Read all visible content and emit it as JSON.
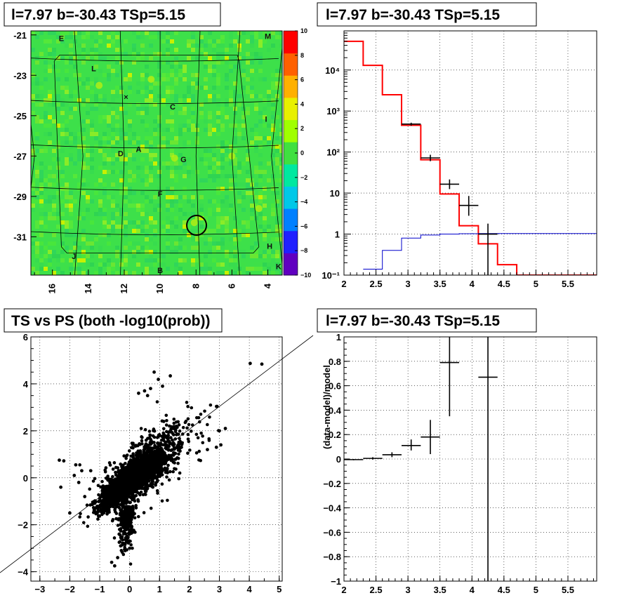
{
  "chart_data": [
    {
      "id": "sky-map",
      "type": "heatmap",
      "title": "l=7.97 b=-30.43 TSp=5.15",
      "x_ticks": [
        16,
        14,
        12,
        10,
        8,
        6,
        4
      ],
      "y_ticks": [
        -21,
        -23,
        -25,
        -27,
        -29,
        -31
      ],
      "xlim": [
        17.2,
        3.2
      ],
      "ylim": [
        -32.9,
        -20.8
      ],
      "colorbar_ticks": [
        10,
        8,
        6,
        4,
        2,
        0,
        -2,
        -4,
        -6,
        -8,
        -10
      ],
      "colorbar_range": [
        -10,
        10
      ],
      "colors": {
        "background": "#3de04a",
        "colorbar": [
          "#6000c0",
          "#2020ff",
          "#0080ff",
          "#00c8e8",
          "#00e8a0",
          "#40e040",
          "#a0ff00",
          "#e8f000",
          "#ffb000",
          "#ff6000",
          "#ff0000"
        ]
      },
      "labels": [
        {
          "text": "E",
          "x": 15.5,
          "y": -21.3
        },
        {
          "text": "M",
          "x": 4.0,
          "y": -21.2
        },
        {
          "text": "L",
          "x": 13.7,
          "y": -22.8
        },
        {
          "text": "C",
          "x": 9.3,
          "y": -24.7
        },
        {
          "text": "I",
          "x": 4.1,
          "y": -25.3
        },
        {
          "text": "D",
          "x": 12.2,
          "y": -27.0
        },
        {
          "text": "A",
          "x": 11.2,
          "y": -26.8
        },
        {
          "text": "G",
          "x": 8.7,
          "y": -27.3
        },
        {
          "text": "F",
          "x": 10.0,
          "y": -29.0
        },
        {
          "text": "H",
          "x": 3.9,
          "y": -31.6
        },
        {
          "text": "J",
          "x": 14.8,
          "y": -32.1
        },
        {
          "text": "B",
          "x": 10.0,
          "y": -32.8
        },
        {
          "text": "K",
          "x": 3.4,
          "y": -32.6
        }
      ],
      "marker_circle": {
        "x": 7.97,
        "y": -30.43
      }
    },
    {
      "id": "spectrum",
      "type": "line",
      "title": "l=7.97 b=-30.43 TSp=5.15",
      "scale_y": "log",
      "xlim": [
        2,
        5.95
      ],
      "ylim": [
        0.1,
        90000
      ],
      "x_ticks": [
        2,
        2.5,
        3,
        3.5,
        4,
        4.5,
        5,
        5.5
      ],
      "y_ticks": [
        {
          "value": 0.1,
          "label": "10⁻¹"
        },
        {
          "value": 1,
          "label": "1"
        },
        {
          "value": 10,
          "label": "10"
        },
        {
          "value": 100,
          "label": "10²"
        },
        {
          "value": 1000,
          "label": "10³"
        },
        {
          "value": 10000,
          "label": "10⁴"
        }
      ],
      "series": [
        {
          "color": "#ff0000",
          "edges": [
            2,
            2.3,
            2.6,
            2.9,
            3.2,
            3.5,
            3.8,
            4.1,
            4.4,
            4.7,
            5.95
          ],
          "values": [
            50000,
            13000,
            2500,
            450,
            65,
            9.5,
            1.6,
            0.58,
            0.18,
            0.1
          ]
        },
        {
          "color": "#0000cc",
          "edges": [
            2.3,
            2.6,
            2.9,
            3.2,
            3.5,
            3.8,
            4.1,
            5.95
          ],
          "values": [
            0.14,
            0.4,
            0.8,
            0.95,
            1.0,
            1.02,
            1.03
          ]
        },
        {
          "color": "#000000",
          "points": [
            {
              "x": 3.05,
              "xerr": 0.15,
              "y": 480,
              "ylo": 440,
              "yhi": 520
            },
            {
              "x": 3.35,
              "xerr": 0.15,
              "y": 72,
              "ylo": 60,
              "yhi": 86
            },
            {
              "x": 3.65,
              "xerr": 0.15,
              "y": 16.5,
              "ylo": 12.5,
              "yhi": 21.5
            },
            {
              "x": 3.95,
              "xerr": 0.15,
              "y": 5.0,
              "ylo": 2.8,
              "yhi": 8.5
            },
            {
              "x": 4.25,
              "xerr": 0.15,
              "y": 1.0,
              "ylo": 0.1,
              "yhi": 1.8
            }
          ]
        }
      ]
    },
    {
      "id": "ts-vs-ps",
      "type": "scatter",
      "title": "TS vs PS (both -log10(prob))",
      "xlim": [
        -3.3,
        5.1
      ],
      "ylim": [
        -4.4,
        6
      ],
      "x_ticks": [
        {
          "value": -3,
          "label": "−3"
        },
        {
          "value": -2,
          "label": "−2"
        },
        {
          "value": -1,
          "label": "−1"
        },
        {
          "value": 0,
          "label": "0"
        },
        {
          "value": 1,
          "label": "1"
        },
        {
          "value": 2,
          "label": "2"
        },
        {
          "value": 3,
          "label": "3"
        },
        {
          "value": 4,
          "label": "4"
        },
        {
          "value": 5,
          "label": "5"
        }
      ],
      "y_ticks": [
        {
          "value": -4,
          "label": "−4"
        },
        {
          "value": -2,
          "label": "−2"
        },
        {
          "value": 0,
          "label": "0"
        },
        {
          "value": 2,
          "label": "2"
        },
        {
          "value": 4,
          "label": "4"
        },
        {
          "value": 6,
          "label": "6"
        }
      ],
      "reference_line": {
        "x1": -3.3,
        "y1": -4.1,
        "x2": 6.0,
        "y2": 6.0
      },
      "points": [
        [
          4.03,
          4.87
        ],
        [
          4.42,
          4.84
        ],
        [
          0.82,
          4.5
        ],
        [
          0.96,
          4.19
        ],
        [
          1.36,
          4.34
        ],
        [
          0.7,
          3.8
        ],
        [
          0.5,
          3.7
        ],
        [
          0.6,
          3.5
        ],
        [
          1.1,
          3.9
        ],
        [
          0.3,
          3.6
        ],
        [
          3.0,
          2.0
        ],
        [
          3.2,
          2.1
        ],
        [
          3.05,
          1.4
        ],
        [
          2.9,
          1.3
        ],
        [
          2.6,
          1.2
        ],
        [
          -2.35,
          0.75
        ],
        [
          -2.2,
          0.72
        ],
        [
          -1.8,
          0.55
        ],
        [
          -2.3,
          -0.4
        ],
        [
          -2.0,
          -1.5
        ],
        [
          -1.85,
          0.1
        ],
        [
          -1.7,
          -0.2
        ],
        [
          -1.6,
          0.3
        ],
        [
          -1.5,
          -0.8
        ],
        [
          -1.3,
          0.3
        ],
        [
          -0.6,
          -3.6
        ],
        [
          -0.5,
          -3.75
        ],
        [
          -0.4,
          -3.4
        ],
        [
          -0.3,
          -2.9
        ],
        [
          -0.15,
          -3.1
        ],
        [
          0.05,
          -2.2
        ],
        [
          -0.1,
          -2.6
        ],
        [
          -0.2,
          -2.8
        ],
        [
          -0.35,
          -2.4
        ],
        [
          0.0,
          -3.0
        ]
      ]
    },
    {
      "id": "residuals",
      "type": "scatter",
      "title": "l=7.97 b=-30.43 TSp=5.15",
      "ylabel": "(data-model)/model",
      "xlim": [
        2,
        5.95
      ],
      "ylim": [
        -1,
        1
      ],
      "x_ticks": [
        {
          "value": 2,
          "label": "2"
        },
        {
          "value": 2.5,
          "label": "2.5"
        },
        {
          "value": 3,
          "label": "3"
        },
        {
          "value": 3.5,
          "label": "3.5"
        },
        {
          "value": 4,
          "label": "4"
        },
        {
          "value": 4.5,
          "label": "4.5"
        },
        {
          "value": 5,
          "label": "5"
        },
        {
          "value": 5.5,
          "label": "5.5"
        }
      ],
      "y_ticks": [
        {
          "value": -1,
          "label": "−1"
        },
        {
          "value": -0.8,
          "label": "−0.8"
        },
        {
          "value": -0.6,
          "label": "−0.6"
        },
        {
          "value": -0.4,
          "label": "−0.4"
        },
        {
          "value": -0.2,
          "label": "−0.2"
        },
        {
          "value": 0,
          "label": "0"
        },
        {
          "value": 0.2,
          "label": "0.2"
        },
        {
          "value": 0.4,
          "label": "0.4"
        },
        {
          "value": 0.6,
          "label": "0.6"
        },
        {
          "value": 0.8,
          "label": "0.8"
        },
        {
          "value": 1,
          "label": "1"
        }
      ],
      "points": [
        {
          "x": 2.15,
          "xerr": 0.15,
          "y": -0.005,
          "ylo": -0.01,
          "yhi": 0.0
        },
        {
          "x": 2.45,
          "xerr": 0.15,
          "y": 0.005,
          "ylo": -0.005,
          "yhi": 0.015
        },
        {
          "x": 2.75,
          "xerr": 0.15,
          "y": 0.035,
          "ylo": 0.015,
          "yhi": 0.055
        },
        {
          "x": 3.05,
          "xerr": 0.15,
          "y": 0.11,
          "ylo": 0.07,
          "yhi": 0.16
        },
        {
          "x": 3.35,
          "xerr": 0.15,
          "y": 0.18,
          "ylo": 0.04,
          "yhi": 0.32
        },
        {
          "x": 3.65,
          "xerr": 0.15,
          "y": 0.79,
          "ylo": 0.35,
          "yhi": 1.0
        },
        {
          "x": 4.25,
          "xerr": 0.15,
          "y": 0.67,
          "ylo": -1.0,
          "yhi": 1.0
        }
      ]
    }
  ]
}
